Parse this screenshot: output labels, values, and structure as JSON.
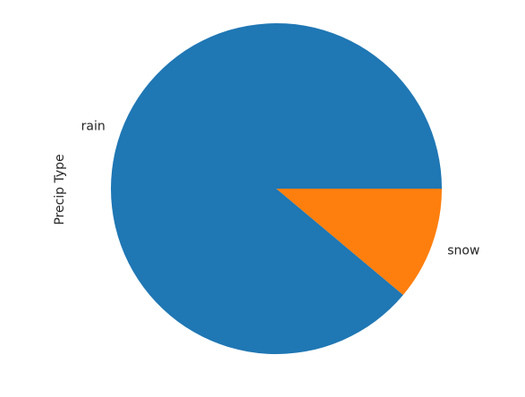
{
  "chart_data": {
    "type": "pie",
    "ylabel": "Precip Type",
    "categories": [
      "rain",
      "snow"
    ],
    "values": [
      88.9,
      11.1
    ],
    "colors": [
      "#1f77b4",
      "#ff7f0e"
    ],
    "start_angle_deg": 0,
    "direction": "counterclockwise"
  }
}
